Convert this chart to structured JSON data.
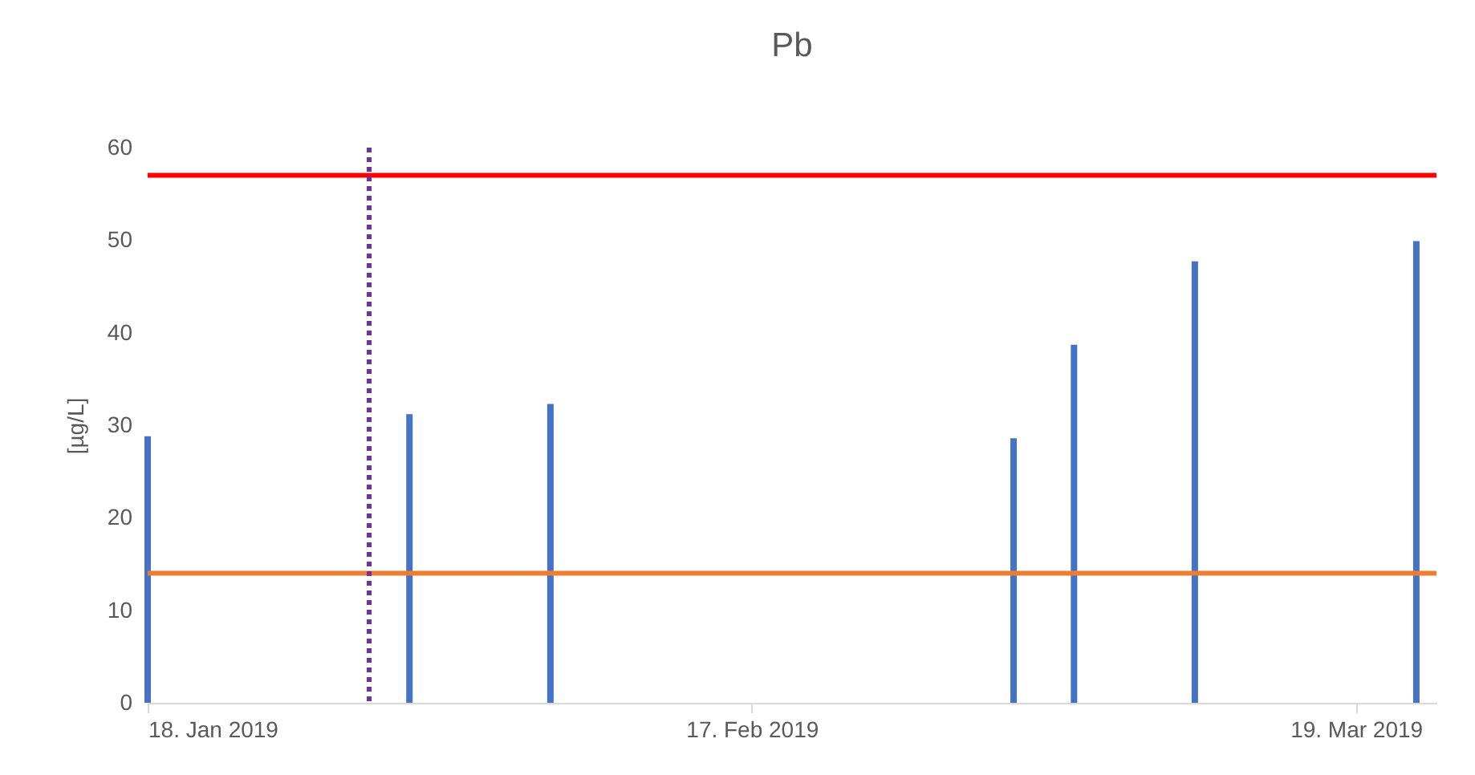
{
  "chart_data": {
    "type": "bar",
    "title": "Pb",
    "ylabel": "[µg/L]",
    "x": [
      "2019-01-18",
      "2019-01-31",
      "2019-02-07",
      "2019-03-02",
      "2019-03-05",
      "2019-03-11",
      "2019-03-22"
    ],
    "values": [
      28.8,
      31.2,
      32.3,
      28.6,
      38.7,
      47.7,
      49.9
    ],
    "color": "#4472c4",
    "xlim": [
      "2019-01-18",
      "2019-03-23"
    ],
    "xticks": [
      {
        "value": "2019-01-18",
        "label": "18. Jan 2019"
      },
      {
        "value": "2019-02-17",
        "label": "17. Feb 2019"
      },
      {
        "value": "2019-03-19",
        "label": "19. Mar 2019"
      }
    ],
    "ylim": [
      0,
      60
    ],
    "yticks": [
      0,
      10,
      20,
      30,
      40,
      50,
      60
    ],
    "ref_lines": [
      {
        "axis": "y",
        "value": 57,
        "color": "#ff0000",
        "line_style": "solid"
      },
      {
        "axis": "y",
        "value": 14,
        "color": "#ed7d31",
        "line_style": "solid"
      },
      {
        "axis": "x",
        "value": "2019-01-29",
        "color": "#7030a0",
        "line_style": "dotted"
      }
    ],
    "grid": false
  }
}
